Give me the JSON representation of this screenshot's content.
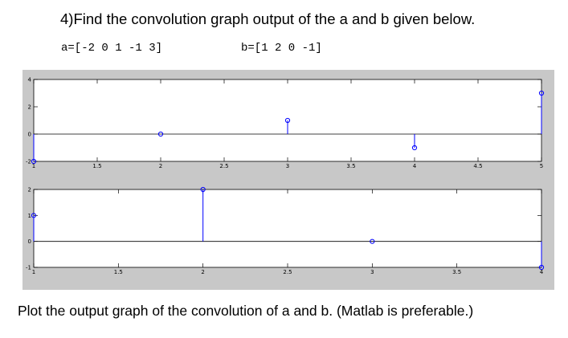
{
  "question": {
    "heading": "4)Find the convolution graph output of the a and b given below.",
    "a_label": "a=[-2 0 1 -1 3]",
    "b_label": "b=[1 2 0 -1]",
    "footer": "Plot the output graph of the convolution of a and b. (Matlab is preferable.)"
  },
  "colors": {
    "figure_bg": "#c8c8c8",
    "axes_bg": "#ffffff",
    "stem": "#0000ff"
  },
  "chart_data": [
    {
      "type": "stem",
      "x": [
        1,
        2,
        3,
        4,
        5
      ],
      "y": [
        -2,
        0,
        1,
        -1,
        3
      ],
      "xlim": [
        1,
        5
      ],
      "ylim": [
        -2,
        4
      ],
      "xticks": [
        "1",
        "1.5",
        "2",
        "2.5",
        "3",
        "3.5",
        "4",
        "4.5",
        "5"
      ],
      "yticks": [
        "-2",
        "0",
        "2",
        "4"
      ],
      "grid": false
    },
    {
      "type": "stem",
      "x": [
        1,
        2,
        3,
        4
      ],
      "y": [
        1,
        2,
        0,
        -1
      ],
      "xlim": [
        1,
        4
      ],
      "ylim": [
        -1,
        2
      ],
      "xticks": [
        "1",
        "1.5",
        "2",
        "2.5",
        "3",
        "3.5",
        "4"
      ],
      "yticks": [
        "-1",
        "0",
        "1",
        "2"
      ],
      "grid": false
    }
  ]
}
